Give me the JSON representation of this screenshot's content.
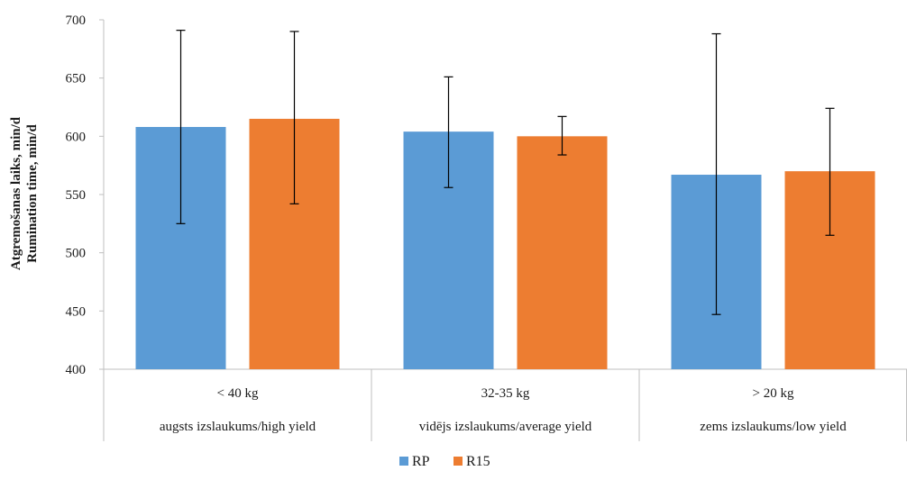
{
  "chart_data": {
    "type": "bar",
    "title": "",
    "ylabel_lines": [
      "Atgremošanas laiks, min/d",
      "Rumination time, min/d"
    ],
    "ylim": [
      400,
      700
    ],
    "yticks": [
      400,
      450,
      500,
      550,
      600,
      650,
      700
    ],
    "grid": false,
    "legend_position": "bottom-center",
    "categories": [
      {
        "range": "< 40 kg",
        "group": "augsts izslaukums/high yield"
      },
      {
        "range": "32-35 kg",
        "group": "vidējs izslaukums/average yield"
      },
      {
        "range": "> 20 kg",
        "group": "zems izslaukums/low yield"
      }
    ],
    "series": [
      {
        "name": "RP",
        "color": "#5b9bd5",
        "values": [
          608,
          604,
          567
        ],
        "error_low": [
          525,
          556,
          447
        ],
        "error_high": [
          691,
          651,
          688
        ]
      },
      {
        "name": "R15",
        "color": "#ed7d31",
        "values": [
          615,
          600,
          570
        ],
        "error_low": [
          542,
          584,
          515
        ],
        "error_high": [
          690,
          617,
          624
        ]
      }
    ]
  }
}
